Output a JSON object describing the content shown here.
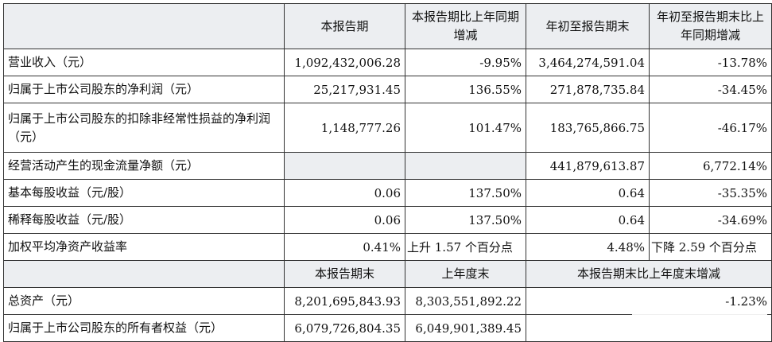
{
  "header": [
    "",
    "本报告期",
    "本报告期比上年同期增减",
    "年初至报告期末",
    "年初至报告期末比上年同期增减"
  ],
  "rows": [
    {
      "label": "营业收入（元）",
      "a": "1,092,432,006.28",
      "b": "-9.95%",
      "c": "3,464,274,591.04",
      "d": "-13.78%"
    },
    {
      "label": "归属于上市公司股东的净利润（元）",
      "a": "25,217,931.45",
      "b": "136.55%",
      "c": "271,878,735.84",
      "d": "-34.45%"
    },
    {
      "label": "归属于上市公司股东的扣除非经常性损益的净利润（元）",
      "a": "1,148,777.26",
      "b": "101.47%",
      "c": "183,765,866.75",
      "d": "-46.17%"
    },
    {
      "label": "经营活动产生的现金流量净额（元）",
      "a": "",
      "b": "",
      "c": "441,879,613.87",
      "d": "6,772.14%"
    },
    {
      "label": "基本每股收益（元/股）",
      "a": "0.06",
      "b": "137.50%",
      "c": "0.64",
      "d": "-35.35%"
    },
    {
      "label": "稀释每股收益（元/股）",
      "a": "0.06",
      "b": "137.50%",
      "c": "0.64",
      "d": "-34.69%"
    },
    {
      "label": "加权平均净资产收益率",
      "a": "0.41%",
      "b": "上升 1.57 个百分点",
      "c": "4.48%",
      "d": "下降 2.59 个百分点"
    }
  ],
  "header2": [
    "",
    "本报告期末",
    "上年度末",
    "本报告期末比上年度末增减"
  ],
  "rows2": [
    {
      "label": "总资产（元）",
      "a": "8,201,695,843.93",
      "b": "8,303,551,892.22",
      "c": "-1.23%"
    },
    {
      "label": "归属于上市公司股东的所有者权益（元）",
      "a": "6,079,726,804.35",
      "b": "6,049,901,389.45",
      "c": ""
    }
  ]
}
